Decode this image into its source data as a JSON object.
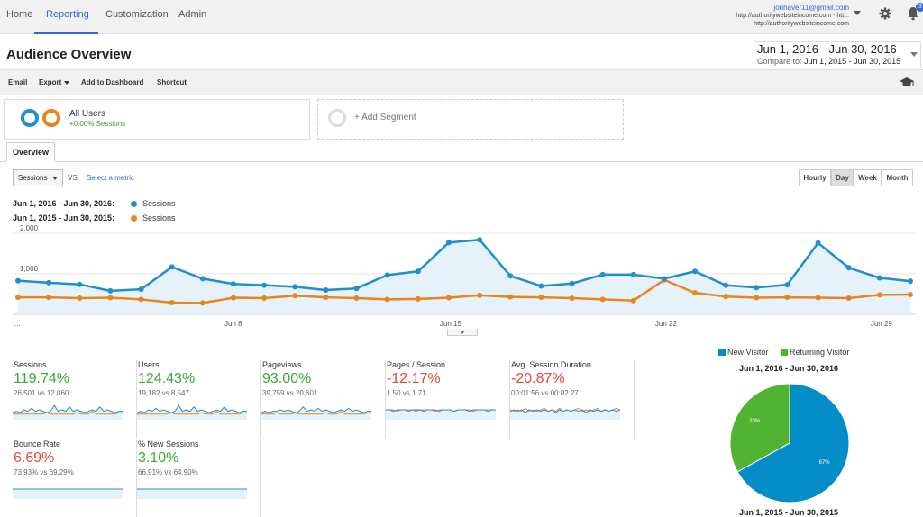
{
  "nav": {
    "tabs": [
      {
        "label": "Home"
      },
      {
        "label": "Reporting"
      },
      {
        "label": "Customization"
      },
      {
        "label": "Admin"
      }
    ],
    "active_tab": "Reporting",
    "account_email": "jonhaver11@gmail.com",
    "property": "http://authoritywebsiteincome.com - htt...",
    "view": "http://authoritywebsiteincome.com",
    "notification_count": "3"
  },
  "header": {
    "title": "Audience Overview",
    "date_range": "Jun 1, 2016 - Jun 30, 2016",
    "compare_label": "Compare to:",
    "compare_range": "Jun 1, 2015 - Jun 30, 2015"
  },
  "toolbar": {
    "email": "Email",
    "export": "Export",
    "add_to_dashboard": "Add to Dashboard",
    "shortcut": "Shortcut"
  },
  "segments": {
    "all_users": "All Users",
    "all_users_sub": "+0.00% Sessions",
    "add_segment": "+ Add Segment"
  },
  "tabs": {
    "overview": "Overview"
  },
  "chart_controls": {
    "metric": "Sessions",
    "vs": "VS.",
    "select_metric": "Select a metric",
    "granularity": [
      "Hourly",
      "Day",
      "Week",
      "Month"
    ],
    "selected_granularity": "Day"
  },
  "colors": {
    "current": "#1f8fcf",
    "previous": "#e8851d",
    "new_visitor": "#058dc7",
    "returning_visitor": "#50b432",
    "positive": "#3aa93a",
    "negative": "#dd4b39"
  },
  "chart_data": {
    "type": "line",
    "legend": [
      {
        "period": "Jun 1, 2016 - Jun 30, 2016:",
        "name": "Sessions"
      },
      {
        "period": "Jun 1, 2015 - Jun 30, 2015:",
        "name": "Sessions"
      }
    ],
    "x_tick_labels": [
      "...",
      "Jun 8",
      "Jun 15",
      "Jun 22",
      "Jun 29"
    ],
    "x_tick_days": [
      1,
      8,
      15,
      22,
      29
    ],
    "y_tick_labels": [
      "2,000",
      "1,000"
    ],
    "y_ticks": [
      2000,
      1000
    ],
    "ylim": [
      0,
      2000
    ],
    "days": [
      1,
      2,
      3,
      4,
      5,
      6,
      7,
      8,
      9,
      10,
      11,
      12,
      13,
      14,
      15,
      16,
      17,
      18,
      19,
      20,
      21,
      22,
      23,
      24,
      25,
      26,
      27,
      28,
      29,
      30
    ],
    "series": [
      {
        "values": [
          830,
          780,
          740,
          580,
          620,
          1170,
          880,
          750,
          720,
          680,
          600,
          640,
          970,
          1060,
          1770,
          1840,
          950,
          700,
          760,
          980,
          980,
          880,
          1060,
          720,
          660,
          730,
          1760,
          1150,
          900,
          820
        ]
      },
      {
        "values": [
          420,
          420,
          400,
          410,
          370,
          290,
          280,
          410,
          400,
          460,
          420,
          400,
          370,
          380,
          410,
          470,
          430,
          420,
          400,
          370,
          340,
          850,
          530,
          440,
          410,
          420,
          410,
          400,
          480,
          490
        ]
      }
    ]
  },
  "metrics": [
    {
      "name": "Sessions",
      "change": "119.74%",
      "dir": "pos",
      "compare": "26,501 vs 12,060",
      "s1": [
        3,
        4,
        3,
        5,
        4,
        6,
        4,
        5,
        4,
        3,
        4,
        8,
        4,
        5,
        4,
        7,
        4,
        5,
        4,
        3,
        4,
        5,
        4,
        7,
        4,
        5,
        4,
        3,
        4,
        4
      ],
      "s2": [
        2,
        2,
        2,
        2,
        2,
        2,
        2,
        2,
        2,
        3,
        2,
        2,
        2,
        2,
        2,
        2,
        2,
        3,
        2,
        2,
        2,
        4,
        2,
        2,
        2,
        2,
        2,
        2,
        3,
        3
      ]
    },
    {
      "name": "Users",
      "change": "124.43%",
      "dir": "pos",
      "compare": "19,182 vs 8,547",
      "s1": [
        3,
        4,
        3,
        5,
        4,
        6,
        4,
        5,
        4,
        3,
        4,
        8,
        4,
        5,
        4,
        7,
        4,
        5,
        4,
        3,
        4,
        5,
        4,
        7,
        4,
        5,
        4,
        3,
        4,
        4
      ],
      "s2": [
        2,
        2,
        2,
        2,
        2,
        2,
        2,
        2,
        2,
        3,
        2,
        2,
        2,
        2,
        2,
        2,
        2,
        3,
        2,
        2,
        2,
        4,
        2,
        2,
        2,
        2,
        2,
        2,
        3,
        3
      ]
    },
    {
      "name": "Pageviews",
      "change": "93.00%",
      "dir": "pos",
      "compare": "39,759 vs 20,601",
      "s1": [
        3,
        4,
        3,
        4,
        4,
        5,
        4,
        5,
        4,
        3,
        4,
        7,
        4,
        5,
        4,
        6,
        4,
        5,
        4,
        3,
        4,
        5,
        4,
        6,
        4,
        5,
        4,
        3,
        4,
        4
      ],
      "s2": [
        2,
        2,
        2,
        2,
        3,
        2,
        2,
        2,
        2,
        3,
        2,
        2,
        2,
        2,
        2,
        2,
        2,
        3,
        2,
        2,
        2,
        4,
        2,
        2,
        2,
        2,
        2,
        2,
        3,
        3
      ]
    },
    {
      "name": "Pages / Session",
      "change": "-12.17%",
      "dir": "neg",
      "compare": "1.50 vs 1.71",
      "s1": [
        5,
        5,
        4,
        5,
        5,
        5,
        4,
        5,
        5,
        5,
        4,
        5,
        5,
        5,
        4,
        5,
        5,
        5,
        4,
        5,
        5,
        5,
        4,
        5,
        5,
        5,
        5,
        4,
        5,
        5
      ],
      "s2": [
        5,
        5,
        5,
        4,
        5,
        5,
        5,
        5,
        4,
        5,
        5,
        5,
        5,
        4,
        5,
        5,
        5,
        5,
        4,
        5,
        5,
        5,
        5,
        4,
        5,
        5,
        5,
        5,
        5,
        5
      ]
    },
    {
      "name": "Avg. Session Duration",
      "change": "-20.87%",
      "dir": "neg",
      "compare": "00:01:56 vs 00:02:27",
      "s1": [
        4,
        5,
        4,
        5,
        3,
        5,
        4,
        5,
        4,
        5,
        4,
        5,
        3,
        5,
        4,
        5,
        4,
        5,
        4,
        5,
        3,
        5,
        4,
        5,
        4,
        5,
        4,
        5,
        4,
        5
      ],
      "s2": [
        5,
        4,
        5,
        4,
        6,
        4,
        5,
        4,
        5,
        6,
        4,
        5,
        4,
        6,
        4,
        5,
        4,
        5,
        6,
        4,
        5,
        4,
        5,
        6,
        4,
        5,
        4,
        5,
        6,
        5
      ]
    },
    {
      "name": "Bounce Rate",
      "change": "6.69%",
      "dir": "neg",
      "compare": "73.93% vs 69.29%",
      "s1": [
        5,
        5,
        5,
        5,
        5,
        5,
        5,
        5,
        5,
        5,
        5,
        5,
        5,
        5,
        5,
        5,
        5,
        5,
        5,
        5,
        5,
        5,
        5,
        5,
        5,
        5,
        5,
        5,
        5,
        5
      ],
      "s2": [
        5,
        5,
        5,
        5,
        5,
        5,
        5,
        5,
        5,
        5,
        5,
        5,
        5,
        5,
        5,
        5,
        5,
        5,
        5,
        5,
        5,
        5,
        5,
        5,
        5,
        5,
        5,
        5,
        5,
        5
      ]
    },
    {
      "name": "% New Sessions",
      "change": "3.10%",
      "dir": "pos",
      "compare": "66.91% vs 64.90%",
      "s1": [
        5,
        5,
        5,
        5,
        5,
        5,
        5,
        5,
        5,
        5,
        5,
        5,
        5,
        5,
        5,
        5,
        5,
        5,
        5,
        5,
        5,
        5,
        5,
        5,
        5,
        5,
        5,
        5,
        5,
        5
      ],
      "s2": [
        5,
        5,
        5,
        5,
        5,
        5,
        5,
        5,
        5,
        5,
        5,
        5,
        5,
        5,
        5,
        5,
        5,
        5,
        5,
        5,
        5,
        5,
        5,
        5,
        5,
        5,
        5,
        5,
        5,
        5
      ]
    }
  ],
  "pie": {
    "legend": [
      "New Visitor",
      "Returning Visitor"
    ],
    "title": "Jun 1, 2016 - Jun 30, 2016",
    "title2": "Jun 1, 2015 - Jun 30, 2015",
    "slices": [
      {
        "name": "New Visitor",
        "value": 67,
        "label": "67%"
      },
      {
        "name": "Returning Visitor",
        "value": 33,
        "label": "33%"
      }
    ]
  }
}
